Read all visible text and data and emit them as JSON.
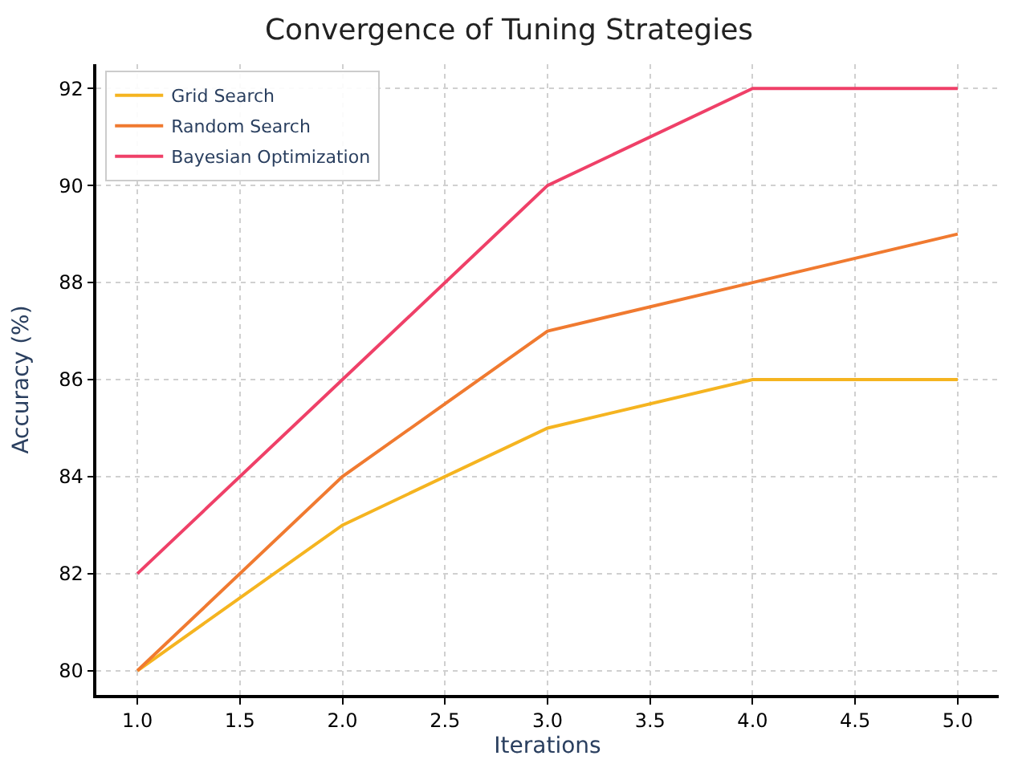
{
  "chart_data": {
    "type": "line",
    "title": "Convergence of Tuning Strategies",
    "xlabel": "Iterations",
    "ylabel": "Accuracy (%)",
    "x": [
      1,
      2,
      3,
      4,
      5
    ],
    "series": [
      {
        "name": "Grid Search",
        "color": "#f5b420",
        "values": [
          80,
          83,
          85,
          86,
          86
        ]
      },
      {
        "name": "Random Search",
        "color": "#f07a30",
        "values": [
          80,
          84,
          87,
          88,
          89
        ]
      },
      {
        "name": "Bayesian Optimization",
        "color": "#ef4068",
        "values": [
          82,
          86,
          90,
          92,
          92
        ]
      }
    ],
    "xlim": [
      0.8,
      5.2
    ],
    "ylim": [
      79.5,
      92.5
    ],
    "xticks": [
      {
        "value": 1,
        "label": "1.0"
      },
      {
        "value": 1.5,
        "label": "1.5"
      },
      {
        "value": 2,
        "label": "2.0"
      },
      {
        "value": 2.5,
        "label": "2.5"
      },
      {
        "value": 3,
        "label": "3.0"
      },
      {
        "value": 3.5,
        "label": "3.5"
      },
      {
        "value": 4,
        "label": "4.0"
      },
      {
        "value": 4.5,
        "label": "4.5"
      },
      {
        "value": 5,
        "label": "5.0"
      }
    ],
    "yticks": [
      80,
      82,
      84,
      86,
      88,
      90,
      92
    ],
    "grid": true,
    "legend": "top left",
    "marker": "none",
    "line_style": "solid"
  }
}
